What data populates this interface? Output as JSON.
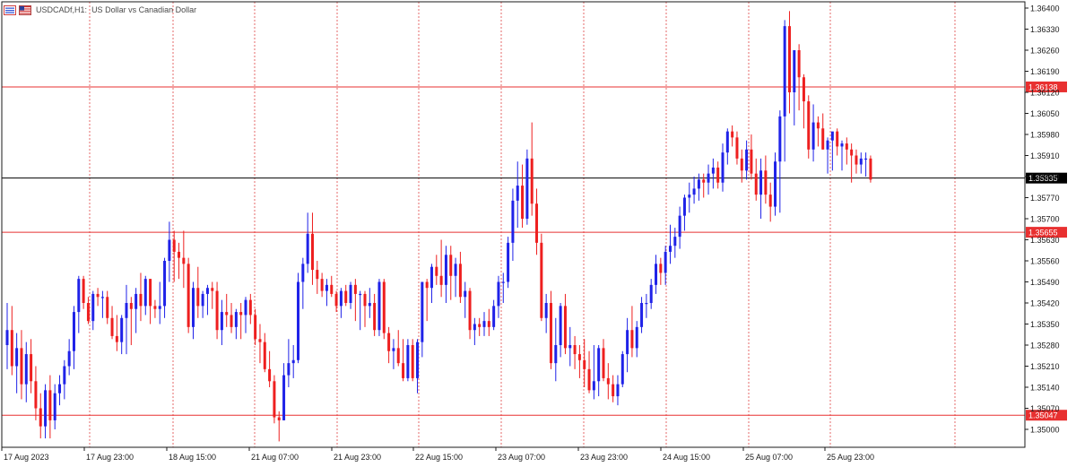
{
  "header": {
    "symbol": "USDCADf",
    "timeframe": "H1",
    "description": "US Dollar vs Canadian Dollar"
  },
  "colors": {
    "bull": "#1f22e8",
    "bear": "#ee1f1f",
    "level_line": "#e83030",
    "current_line": "#000000",
    "grid": "#e66a6a"
  },
  "chart_data": {
    "type": "candlestick",
    "symbol": "USDCADf",
    "timeframe": "H1",
    "ylim": [
      1.3493,
      1.3641
    ],
    "y_ticks": [
      "1.36400",
      "1.36330",
      "1.36260",
      "1.36190",
      "1.36120",
      "1.36050",
      "1.35980",
      "1.35910",
      "1.35840",
      "1.35770",
      "1.35700",
      "1.35630",
      "1.35560",
      "1.35490",
      "1.35420",
      "1.35350",
      "1.35280",
      "1.35210",
      "1.35140",
      "1.35070",
      "1.35000"
    ],
    "x_ticks": [
      "17 Aug 2023",
      "17 Aug 23:00",
      "18 Aug 15:00",
      "21 Aug 07:00",
      "21 Aug 23:00",
      "22 Aug 15:00",
      "23 Aug 07:00",
      "23 Aug 23:00",
      "24 Aug 15:00",
      "25 Aug 07:00",
      "25 Aug 23:00"
    ],
    "levels": [
      {
        "price": 1.36138,
        "label": "1.36138"
      },
      {
        "price": 1.35655,
        "label": "1.35655"
      },
      {
        "price": 1.35047,
        "label": "1.35047"
      }
    ],
    "current_price": {
      "price": 1.35835,
      "label": "1.35835"
    },
    "candles": [
      [
        1.3528,
        1.3542,
        1.352,
        1.3533
      ],
      [
        1.3533,
        1.3541,
        1.3518,
        1.3521
      ],
      [
        1.3521,
        1.3532,
        1.3512,
        1.3527
      ],
      [
        1.3527,
        1.3533,
        1.351,
        1.3515
      ],
      [
        1.3515,
        1.3529,
        1.3509,
        1.3525
      ],
      [
        1.3525,
        1.353,
        1.3512,
        1.3516
      ],
      [
        1.3516,
        1.3521,
        1.3503,
        1.3507
      ],
      [
        1.3507,
        1.3512,
        1.3497,
        1.3501
      ],
      [
        1.3501,
        1.3515,
        1.3497,
        1.3513
      ],
      [
        1.3513,
        1.3518,
        1.3497,
        1.3503
      ],
      [
        1.3503,
        1.3515,
        1.35,
        1.3512
      ],
      [
        1.3512,
        1.3518,
        1.3508,
        1.3515
      ],
      [
        1.3515,
        1.3523,
        1.351,
        1.3521
      ],
      [
        1.3521,
        1.353,
        1.3518,
        1.3526
      ],
      [
        1.3526,
        1.3541,
        1.352,
        1.3539
      ],
      [
        1.3539,
        1.3551,
        1.3532,
        1.355
      ],
      [
        1.355,
        1.3551,
        1.354,
        1.3542
      ],
      [
        1.3542,
        1.3544,
        1.3535,
        1.3536
      ],
      [
        1.3536,
        1.3546,
        1.3533,
        1.3545
      ],
      [
        1.3545,
        1.3547,
        1.3541,
        1.3544
      ],
      [
        1.3544,
        1.3546,
        1.3537,
        1.3544
      ],
      [
        1.3544,
        1.3546,
        1.3535,
        1.3537
      ],
      [
        1.3537,
        1.3541,
        1.353,
        1.3531
      ],
      [
        1.3531,
        1.3538,
        1.3526,
        1.3529
      ],
      [
        1.3529,
        1.3538,
        1.3525,
        1.3537
      ],
      [
        1.3537,
        1.3548,
        1.3525,
        1.3542
      ],
      [
        1.3542,
        1.3544,
        1.3528,
        1.354
      ],
      [
        1.354,
        1.3547,
        1.3532,
        1.3545
      ],
      [
        1.3545,
        1.3552,
        1.3536,
        1.3541
      ],
      [
        1.3541,
        1.3551,
        1.3538,
        1.355
      ],
      [
        1.355,
        1.355,
        1.3535,
        1.3541
      ],
      [
        1.3541,
        1.3543,
        1.3537,
        1.354
      ],
      [
        1.354,
        1.3549,
        1.3535,
        1.3541
      ],
      [
        1.3541,
        1.3557,
        1.3537,
        1.3556
      ],
      [
        1.3556,
        1.3569,
        1.3549,
        1.3563
      ],
      [
        1.3563,
        1.3566,
        1.3549,
        1.3559
      ],
      [
        1.3559,
        1.3562,
        1.355,
        1.3557
      ],
      [
        1.3557,
        1.3566,
        1.3547,
        1.3555
      ],
      [
        1.3555,
        1.3557,
        1.3532,
        1.3534
      ],
      [
        1.3534,
        1.3549,
        1.353,
        1.3547
      ],
      [
        1.3547,
        1.3554,
        1.3537,
        1.3541
      ],
      [
        1.3541,
        1.3546,
        1.3537,
        1.3545
      ],
      [
        1.3545,
        1.3548,
        1.3538,
        1.3547
      ],
      [
        1.3547,
        1.3549,
        1.354,
        1.3546
      ],
      [
        1.3546,
        1.3549,
        1.353,
        1.3533
      ],
      [
        1.3533,
        1.3543,
        1.3528,
        1.3539
      ],
      [
        1.3539,
        1.3545,
        1.3534,
        1.3538
      ],
      [
        1.3538,
        1.3542,
        1.3532,
        1.3534
      ],
      [
        1.3534,
        1.354,
        1.353,
        1.3539
      ],
      [
        1.3539,
        1.3542,
        1.353,
        1.3538
      ],
      [
        1.3538,
        1.3544,
        1.3532,
        1.3543
      ],
      [
        1.3543,
        1.3545,
        1.3535,
        1.3538
      ],
      [
        1.3538,
        1.354,
        1.3528,
        1.353
      ],
      [
        1.353,
        1.3535,
        1.3522,
        1.3529
      ],
      [
        1.3529,
        1.3532,
        1.3519,
        1.352
      ],
      [
        1.352,
        1.3526,
        1.3514,
        1.3516
      ],
      [
        1.3516,
        1.3518,
        1.3502,
        1.3504
      ],
      [
        1.3504,
        1.3506,
        1.3496,
        1.3503
      ],
      [
        1.3503,
        1.3522,
        1.3503,
        1.3518
      ],
      [
        1.3518,
        1.353,
        1.3514,
        1.3522
      ],
      [
        1.3522,
        1.3528,
        1.3517,
        1.3523
      ],
      [
        1.3523,
        1.3552,
        1.3522,
        1.3549
      ],
      [
        1.3549,
        1.3557,
        1.354,
        1.3555
      ],
      [
        1.3555,
        1.3572,
        1.3552,
        1.3565
      ],
      [
        1.3565,
        1.3572,
        1.3548,
        1.3553
      ],
      [
        1.3553,
        1.3556,
        1.3545,
        1.355
      ],
      [
        1.355,
        1.3552,
        1.3544,
        1.3546
      ],
      [
        1.3546,
        1.355,
        1.3541,
        1.3548
      ],
      [
        1.3548,
        1.3551,
        1.3544,
        1.3545
      ],
      [
        1.3545,
        1.3546,
        1.3539,
        1.3541
      ],
      [
        1.3541,
        1.3547,
        1.3537,
        1.3546
      ],
      [
        1.3546,
        1.3548,
        1.3541,
        1.3542
      ],
      [
        1.3542,
        1.3549,
        1.354,
        1.3548
      ],
      [
        1.3548,
        1.355,
        1.3536,
        1.3545
      ],
      [
        1.3545,
        1.3546,
        1.3533,
        1.3545
      ],
      [
        1.3545,
        1.3546,
        1.3534,
        1.3541
      ],
      [
        1.3541,
        1.3547,
        1.3537,
        1.3542
      ],
      [
        1.3542,
        1.3545,
        1.3531,
        1.3533
      ],
      [
        1.3533,
        1.355,
        1.3531,
        1.3549
      ],
      [
        1.3549,
        1.355,
        1.353,
        1.3532
      ],
      [
        1.3532,
        1.3534,
        1.3522,
        1.3526
      ],
      [
        1.3526,
        1.353,
        1.352,
        1.3527
      ],
      [
        1.3527,
        1.3533,
        1.3521,
        1.3522
      ],
      [
        1.3522,
        1.353,
        1.3516,
        1.3517
      ],
      [
        1.3517,
        1.353,
        1.3516,
        1.3528
      ],
      [
        1.3528,
        1.353,
        1.3516,
        1.3517
      ],
      [
        1.3517,
        1.353,
        1.3512,
        1.3529
      ],
      [
        1.3529,
        1.3549,
        1.3524,
        1.3549
      ],
      [
        1.3549,
        1.355,
        1.3536,
        1.3547
      ],
      [
        1.3547,
        1.3555,
        1.3542,
        1.3554
      ],
      [
        1.3554,
        1.3558,
        1.3548,
        1.3551
      ],
      [
        1.3551,
        1.3563,
        1.3544,
        1.3548
      ],
      [
        1.3548,
        1.3561,
        1.3542,
        1.3558
      ],
      [
        1.3558,
        1.3561,
        1.3543,
        1.3551
      ],
      [
        1.3551,
        1.3557,
        1.3544,
        1.3555
      ],
      [
        1.3555,
        1.3559,
        1.3542,
        1.3544
      ],
      [
        1.3544,
        1.3549,
        1.3537,
        1.3546
      ],
      [
        1.3546,
        1.3547,
        1.353,
        1.3533
      ],
      [
        1.3533,
        1.3537,
        1.3528,
        1.3535
      ],
      [
        1.3535,
        1.3537,
        1.3531,
        1.3534
      ],
      [
        1.3534,
        1.3539,
        1.3531,
        1.3536
      ],
      [
        1.3536,
        1.354,
        1.3531,
        1.3534
      ],
      [
        1.3534,
        1.3543,
        1.3533,
        1.3541
      ],
      [
        1.3541,
        1.3551,
        1.3537,
        1.3549
      ],
      [
        1.3549,
        1.3552,
        1.3542,
        1.3549
      ],
      [
        1.3549,
        1.3564,
        1.3547,
        1.3562
      ],
      [
        1.3562,
        1.358,
        1.3556,
        1.3576
      ],
      [
        1.3576,
        1.3589,
        1.3567,
        1.3581
      ],
      [
        1.3581,
        1.3588,
        1.3567,
        1.357
      ],
      [
        1.357,
        1.3593,
        1.3568,
        1.359
      ],
      [
        1.359,
        1.3602,
        1.3571,
        1.3575
      ],
      [
        1.3575,
        1.358,
        1.3558,
        1.3562
      ],
      [
        1.3562,
        1.3565,
        1.3536,
        1.3537
      ],
      [
        1.3537,
        1.3545,
        1.3532,
        1.3542
      ],
      [
        1.3542,
        1.3546,
        1.352,
        1.3522
      ],
      [
        1.3522,
        1.3537,
        1.3516,
        1.3528
      ],
      [
        1.3528,
        1.3542,
        1.3524,
        1.3541
      ],
      [
        1.3541,
        1.3545,
        1.3525,
        1.3527
      ],
      [
        1.3527,
        1.3534,
        1.3521,
        1.3528
      ],
      [
        1.3528,
        1.3531,
        1.352,
        1.3525
      ],
      [
        1.3525,
        1.3528,
        1.3517,
        1.3523
      ],
      [
        1.3523,
        1.353,
        1.3514,
        1.352
      ],
      [
        1.352,
        1.3526,
        1.3512,
        1.3513
      ],
      [
        1.3513,
        1.3528,
        1.351,
        1.3516
      ],
      [
        1.3516,
        1.3528,
        1.3511,
        1.3527
      ],
      [
        1.3527,
        1.353,
        1.3516,
        1.3517
      ],
      [
        1.3517,
        1.3522,
        1.351,
        1.3515
      ],
      [
        1.3515,
        1.3518,
        1.3509,
        1.3511
      ],
      [
        1.3511,
        1.3518,
        1.3508,
        1.3515
      ],
      [
        1.3515,
        1.3526,
        1.3514,
        1.3525
      ],
      [
        1.3525,
        1.3537,
        1.3519,
        1.3533
      ],
      [
        1.3533,
        1.3541,
        1.3524,
        1.3527
      ],
      [
        1.3527,
        1.3536,
        1.3524,
        1.3534
      ],
      [
        1.3534,
        1.3544,
        1.3532,
        1.3542
      ],
      [
        1.3542,
        1.3545,
        1.3537,
        1.3542
      ],
      [
        1.3542,
        1.355,
        1.354,
        1.3548
      ],
      [
        1.3548,
        1.3558,
        1.3545,
        1.3555
      ],
      [
        1.3555,
        1.3557,
        1.3548,
        1.3552
      ],
      [
        1.3552,
        1.3561,
        1.3548,
        1.3559
      ],
      [
        1.3559,
        1.3568,
        1.3555,
        1.3561
      ],
      [
        1.3561,
        1.3567,
        1.3557,
        1.3564
      ],
      [
        1.3564,
        1.3574,
        1.356,
        1.3571
      ],
      [
        1.3571,
        1.3578,
        1.3566,
        1.3577
      ],
      [
        1.3577,
        1.3582,
        1.3572,
        1.3578
      ],
      [
        1.3578,
        1.3584,
        1.3575,
        1.358
      ],
      [
        1.358,
        1.3585,
        1.3576,
        1.3583
      ],
      [
        1.3583,
        1.3585,
        1.3577,
        1.3582
      ],
      [
        1.3582,
        1.3588,
        1.3578,
        1.3585
      ],
      [
        1.3585,
        1.359,
        1.358,
        1.3587
      ],
      [
        1.3587,
        1.3589,
        1.358,
        1.3582
      ],
      [
        1.3582,
        1.3595,
        1.3579,
        1.3592
      ],
      [
        1.3592,
        1.36,
        1.3588,
        1.3599
      ],
      [
        1.3599,
        1.3601,
        1.3594,
        1.3597
      ],
      [
        1.3597,
        1.3599,
        1.3588,
        1.359
      ],
      [
        1.359,
        1.3593,
        1.3582,
        1.3586
      ],
      [
        1.3586,
        1.3596,
        1.3583,
        1.3593
      ],
      [
        1.3593,
        1.3598,
        1.3583,
        1.3585
      ],
      [
        1.3585,
        1.359,
        1.3576,
        1.3578
      ],
      [
        1.3578,
        1.359,
        1.357,
        1.3586
      ],
      [
        1.3586,
        1.3591,
        1.3575,
        1.3578
      ],
      [
        1.3578,
        1.3582,
        1.3569,
        1.3574
      ],
      [
        1.3574,
        1.3592,
        1.3571,
        1.3589
      ],
      [
        1.3589,
        1.3606,
        1.3572,
        1.3604
      ],
      [
        1.3604,
        1.3636,
        1.3589,
        1.3634
      ],
      [
        1.3634,
        1.3639,
        1.3605,
        1.3612
      ],
      [
        1.3612,
        1.3625,
        1.3601,
        1.3626
      ],
      [
        1.3626,
        1.3628,
        1.3606,
        1.3617
      ],
      [
        1.3617,
        1.3618,
        1.36,
        1.3609
      ],
      [
        1.3609,
        1.3611,
        1.359,
        1.3593
      ],
      [
        1.3593,
        1.3608,
        1.3589,
        1.3602
      ],
      [
        1.3602,
        1.3604,
        1.3594,
        1.36
      ],
      [
        1.36,
        1.3605,
        1.3593,
        1.3593
      ],
      [
        1.3593,
        1.3597,
        1.3585,
        1.3596
      ],
      [
        1.3596,
        1.3598,
        1.3586,
        1.3599
      ],
      [
        1.3599,
        1.36,
        1.3591,
        1.3594
      ],
      [
        1.3594,
        1.3596,
        1.3586,
        1.3595
      ],
      [
        1.3595,
        1.3597,
        1.3588,
        1.3593
      ],
      [
        1.3593,
        1.3595,
        1.3582,
        1.3591
      ],
      [
        1.3591,
        1.3593,
        1.3585,
        1.3588
      ],
      [
        1.3588,
        1.3592,
        1.3585,
        1.359
      ],
      [
        1.359,
        1.3592,
        1.3584,
        1.359
      ],
      [
        1.359,
        1.3591,
        1.3582,
        1.3583
      ]
    ]
  }
}
